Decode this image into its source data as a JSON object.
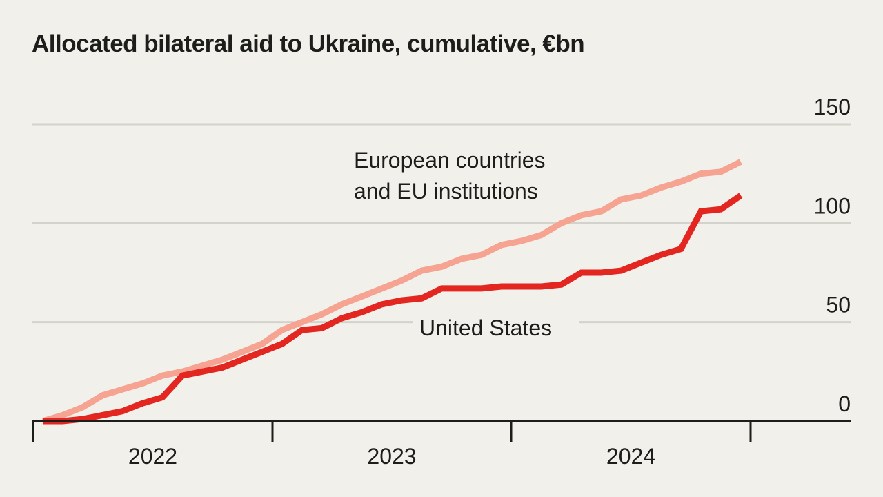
{
  "chart_data": {
    "type": "line",
    "title": "Allocated bilateral aid to Ukraine, cumulative, €bn",
    "xlabel": "",
    "ylabel": "",
    "ylim": [
      0,
      150
    ],
    "yticks": [
      "0",
      "50",
      "100",
      "150"
    ],
    "xticks": [
      "2022",
      "2023",
      "2024"
    ],
    "x_frequency": "monthly, Jan 2022 - Dec 2024",
    "grid": true,
    "legend": "inline labels",
    "series": [
      {
        "name": "European countries and EU institutions",
        "label_lines": [
          "European countries",
          "and EU institutions"
        ],
        "color": "#f6a392",
        "values": [
          0,
          3,
          7,
          13,
          16,
          19,
          23,
          25,
          28,
          31,
          35,
          39,
          46,
          50,
          54,
          59,
          63,
          67,
          71,
          76,
          78,
          82,
          84,
          89,
          91,
          94,
          100,
          104,
          106,
          112,
          114,
          118,
          121,
          125,
          126,
          131
        ]
      },
      {
        "name": "United States",
        "label_lines": [
          "United States"
        ],
        "color": "#e3261f",
        "values": [
          0,
          0,
          1,
          3,
          5,
          9,
          12,
          23,
          25,
          27,
          31,
          35,
          39,
          46,
          47,
          52,
          55,
          59,
          61,
          62,
          67,
          67,
          67,
          68,
          68,
          68,
          69,
          75,
          75,
          76,
          80,
          84,
          87,
          106,
          107,
          114
        ]
      }
    ]
  }
}
